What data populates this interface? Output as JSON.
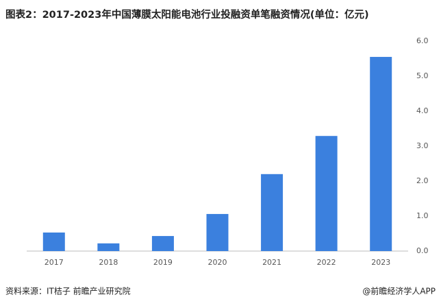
{
  "chart_data": {
    "type": "bar",
    "title": "图表2：2017-2023年中国薄膜太阳能电池行业投融资单笔融资情况(单位：亿元)",
    "categories": [
      "2017",
      "2018",
      "2019",
      "2020",
      "2021",
      "2022",
      "2023"
    ],
    "values": [
      0.53,
      0.22,
      0.43,
      1.06,
      2.2,
      3.29,
      5.55
    ],
    "color": "#3b80de",
    "ylim": [
      0,
      6
    ],
    "yticks": [
      {
        "value": 0,
        "label": "0.0"
      },
      {
        "value": 1,
        "label": "1.0"
      },
      {
        "value": 2,
        "label": "2.0"
      },
      {
        "value": 3,
        "label": "3.0"
      },
      {
        "value": 4,
        "label": "4.0"
      },
      {
        "value": 5,
        "label": "5.0"
      },
      {
        "value": 6,
        "label": "6.0"
      }
    ],
    "grid": false,
    "source": "资料来源：IT桔子 前瞻产业研究院",
    "credit": "@前瞻经济学人APP"
  }
}
